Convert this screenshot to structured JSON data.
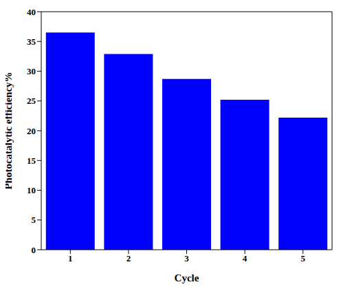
{
  "chart_data": {
    "type": "bar",
    "x_label": "Cycle",
    "y_label": "Photocatalytic efficiency%",
    "categories": [
      "1",
      "2",
      "3",
      "4",
      "5"
    ],
    "values": [
      36.5,
      32.9,
      28.7,
      25.2,
      22.2
    ],
    "color": "#0000ff",
    "ylim": [
      0,
      40
    ],
    "yticks": [
      0,
      5,
      10,
      15,
      20,
      25,
      30,
      35,
      40
    ],
    "grid": false
  }
}
